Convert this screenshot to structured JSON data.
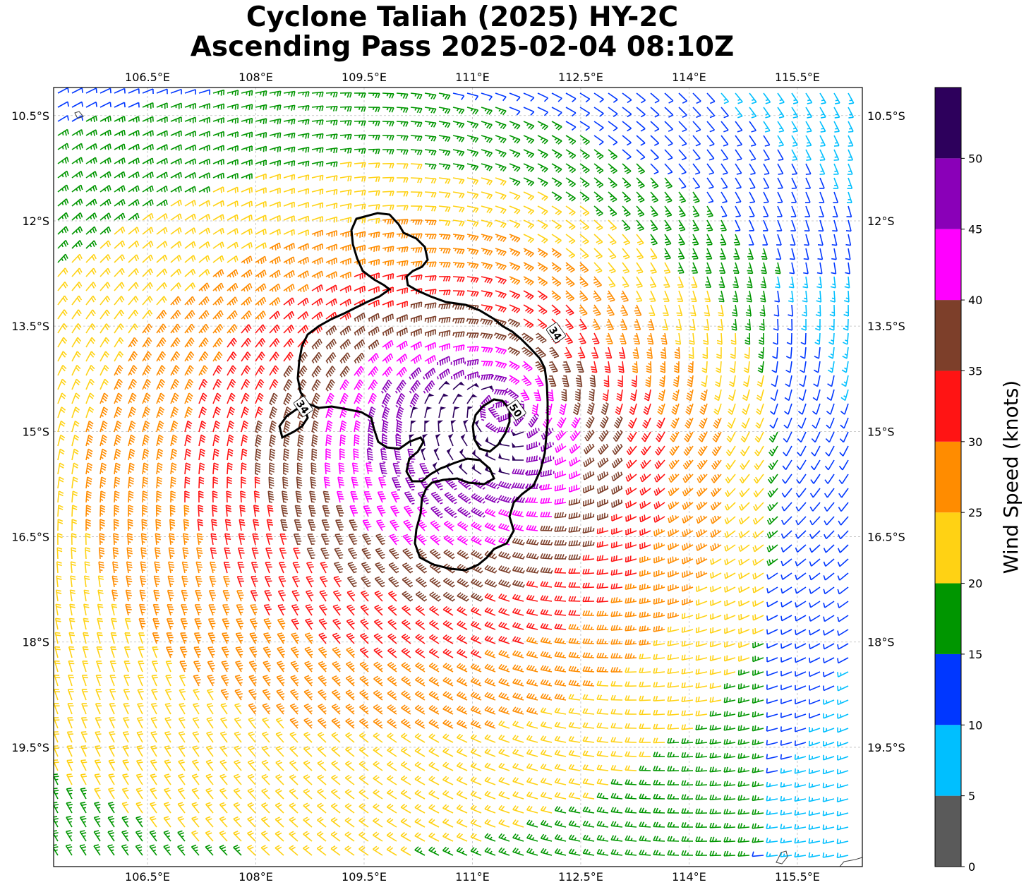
{
  "title": {
    "line1": "Cyclone Taliah (2025) HY-2C",
    "line2": "Ascending Pass 2025-02-04 08:10Z"
  },
  "map": {
    "lon_range": [
      105.2,
      116.4
    ],
    "lat_range": [
      -21.2,
      -10.1
    ],
    "lon_ticks": [
      {
        "value": 106.5,
        "label": "106.5°E"
      },
      {
        "value": 108.0,
        "label": "108°E"
      },
      {
        "value": 109.5,
        "label": "109.5°E"
      },
      {
        "value": 111.0,
        "label": "111°E"
      },
      {
        "value": 112.5,
        "label": "112.5°E"
      },
      {
        "value": 114.0,
        "label": "114°E"
      },
      {
        "value": 115.5,
        "label": "115.5°E"
      }
    ],
    "lat_ticks": [
      {
        "value": -10.5,
        "label": "10.5°S"
      },
      {
        "value": -12.0,
        "label": "12°S"
      },
      {
        "value": -13.5,
        "label": "13.5°S"
      },
      {
        "value": -15.0,
        "label": "15°S"
      },
      {
        "value": -16.5,
        "label": "16.5°S"
      },
      {
        "value": -18.0,
        "label": "18°S"
      },
      {
        "value": -19.5,
        "label": "19.5°S"
      }
    ],
    "gridlines": true,
    "storm_center": {
      "lon": 111.4,
      "lat": -14.7
    },
    "contour_labels": [
      {
        "text": "34",
        "lon": 112.15,
        "lat": -13.6
      },
      {
        "text": "34",
        "lon": 108.65,
        "lat": -14.65
      },
      {
        "text": "50",
        "lon": 111.6,
        "lat": -14.7
      }
    ],
    "coastline": "small islands near 105.6°E 10.5°S and near 115.4°E 21°S"
  },
  "colorbar": {
    "title": "Wind Speed (knots)",
    "ticks": [
      "0",
      "5",
      "10",
      "15",
      "20",
      "25",
      "30",
      "35",
      "40",
      "45",
      "50"
    ],
    "bins": [
      {
        "min": 0,
        "max": 5,
        "color": "#5a5a5a"
      },
      {
        "min": 5,
        "max": 10,
        "color": "#00bfff"
      },
      {
        "min": 10,
        "max": 15,
        "color": "#0037ff"
      },
      {
        "min": 15,
        "max": 20,
        "color": "#009600"
      },
      {
        "min": 20,
        "max": 25,
        "color": "#ffd214"
      },
      {
        "min": 25,
        "max": 30,
        "color": "#ff8c00"
      },
      {
        "min": 30,
        "max": 35,
        "color": "#ff1414"
      },
      {
        "min": 35,
        "max": 40,
        "color": "#7d3f2a"
      },
      {
        "min": 40,
        "max": 45,
        "color": "#ff00ff"
      },
      {
        "min": 45,
        "max": 50,
        "color": "#8a00b8"
      },
      {
        "min": 50,
        "max": 55,
        "color": "#2d005c"
      }
    ]
  }
}
